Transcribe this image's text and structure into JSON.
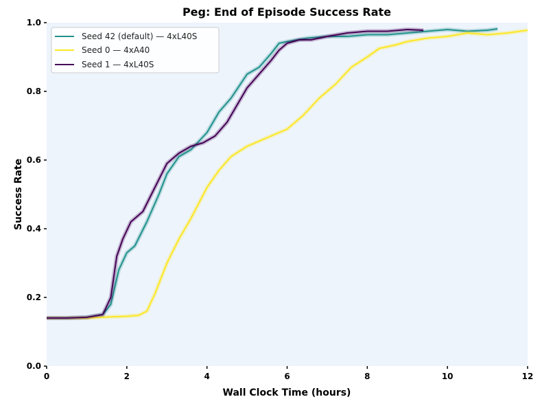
{
  "chart_data": {
    "type": "line",
    "title": "Peg: End of Episode Success Rate",
    "xlabel": "Wall Clock Time (hours)",
    "ylabel": "Success Rate",
    "xlim": [
      0,
      12
    ],
    "ylim": [
      0,
      1.0
    ],
    "xticks": [
      "0",
      "2",
      "4",
      "6",
      "8",
      "10",
      "12"
    ],
    "yticks": [
      "0.0",
      "0.2",
      "0.4",
      "0.6",
      "0.8",
      "1.0"
    ],
    "grid": false,
    "background": "#eef4fc",
    "legend_position": "top-left",
    "series": [
      {
        "name": "Seed 42 (default) — 4xL40S",
        "color": "#21918c",
        "x": [
          0,
          0.5,
          1.0,
          1.4,
          1.6,
          1.8,
          2.0,
          2.2,
          2.5,
          2.8,
          3.0,
          3.3,
          3.6,
          4.0,
          4.3,
          4.6,
          5.0,
          5.3,
          5.6,
          5.8,
          6.0,
          6.5,
          7.0,
          7.5,
          8.0,
          8.5,
          9.0,
          9.5,
          10.0,
          10.5,
          11.0,
          11.25
        ],
        "y": [
          0.14,
          0.14,
          0.142,
          0.15,
          0.18,
          0.28,
          0.33,
          0.35,
          0.42,
          0.5,
          0.56,
          0.61,
          0.63,
          0.68,
          0.74,
          0.78,
          0.85,
          0.87,
          0.91,
          0.94,
          0.945,
          0.955,
          0.96,
          0.96,
          0.965,
          0.965,
          0.97,
          0.975,
          0.98,
          0.975,
          0.978,
          0.982
        ]
      },
      {
        "name": "Seed 0 — 4xA40",
        "color": "#fde725",
        "x": [
          0,
          0.5,
          1.0,
          1.5,
          2.0,
          2.3,
          2.5,
          2.7,
          3.0,
          3.3,
          3.6,
          4.0,
          4.3,
          4.6,
          5.0,
          5.4,
          5.8,
          6.0,
          6.4,
          6.8,
          7.2,
          7.6,
          8.0,
          8.3,
          8.7,
          9.0,
          9.5,
          10.0,
          10.5,
          11.0,
          11.5,
          12.0
        ],
        "y": [
          0.14,
          0.14,
          0.14,
          0.143,
          0.145,
          0.148,
          0.16,
          0.21,
          0.3,
          0.37,
          0.43,
          0.52,
          0.57,
          0.61,
          0.64,
          0.66,
          0.68,
          0.69,
          0.73,
          0.78,
          0.82,
          0.87,
          0.9,
          0.925,
          0.935,
          0.945,
          0.955,
          0.96,
          0.97,
          0.965,
          0.97,
          0.978
        ]
      },
      {
        "name": "Seed 1 — 4xL40S",
        "color": "#440154",
        "x": [
          0,
          0.5,
          1.0,
          1.4,
          1.6,
          1.75,
          1.9,
          2.1,
          2.4,
          2.7,
          3.0,
          3.3,
          3.6,
          3.9,
          4.2,
          4.5,
          4.8,
          5.0,
          5.3,
          5.6,
          5.8,
          6.0,
          6.3,
          6.6,
          7.0,
          7.5,
          8.0,
          8.5,
          9.0,
          9.4
        ],
        "y": [
          0.14,
          0.14,
          0.142,
          0.15,
          0.2,
          0.32,
          0.37,
          0.42,
          0.45,
          0.52,
          0.59,
          0.62,
          0.64,
          0.65,
          0.67,
          0.71,
          0.77,
          0.81,
          0.85,
          0.89,
          0.92,
          0.94,
          0.95,
          0.95,
          0.96,
          0.97,
          0.975,
          0.975,
          0.98,
          0.978
        ]
      }
    ]
  }
}
